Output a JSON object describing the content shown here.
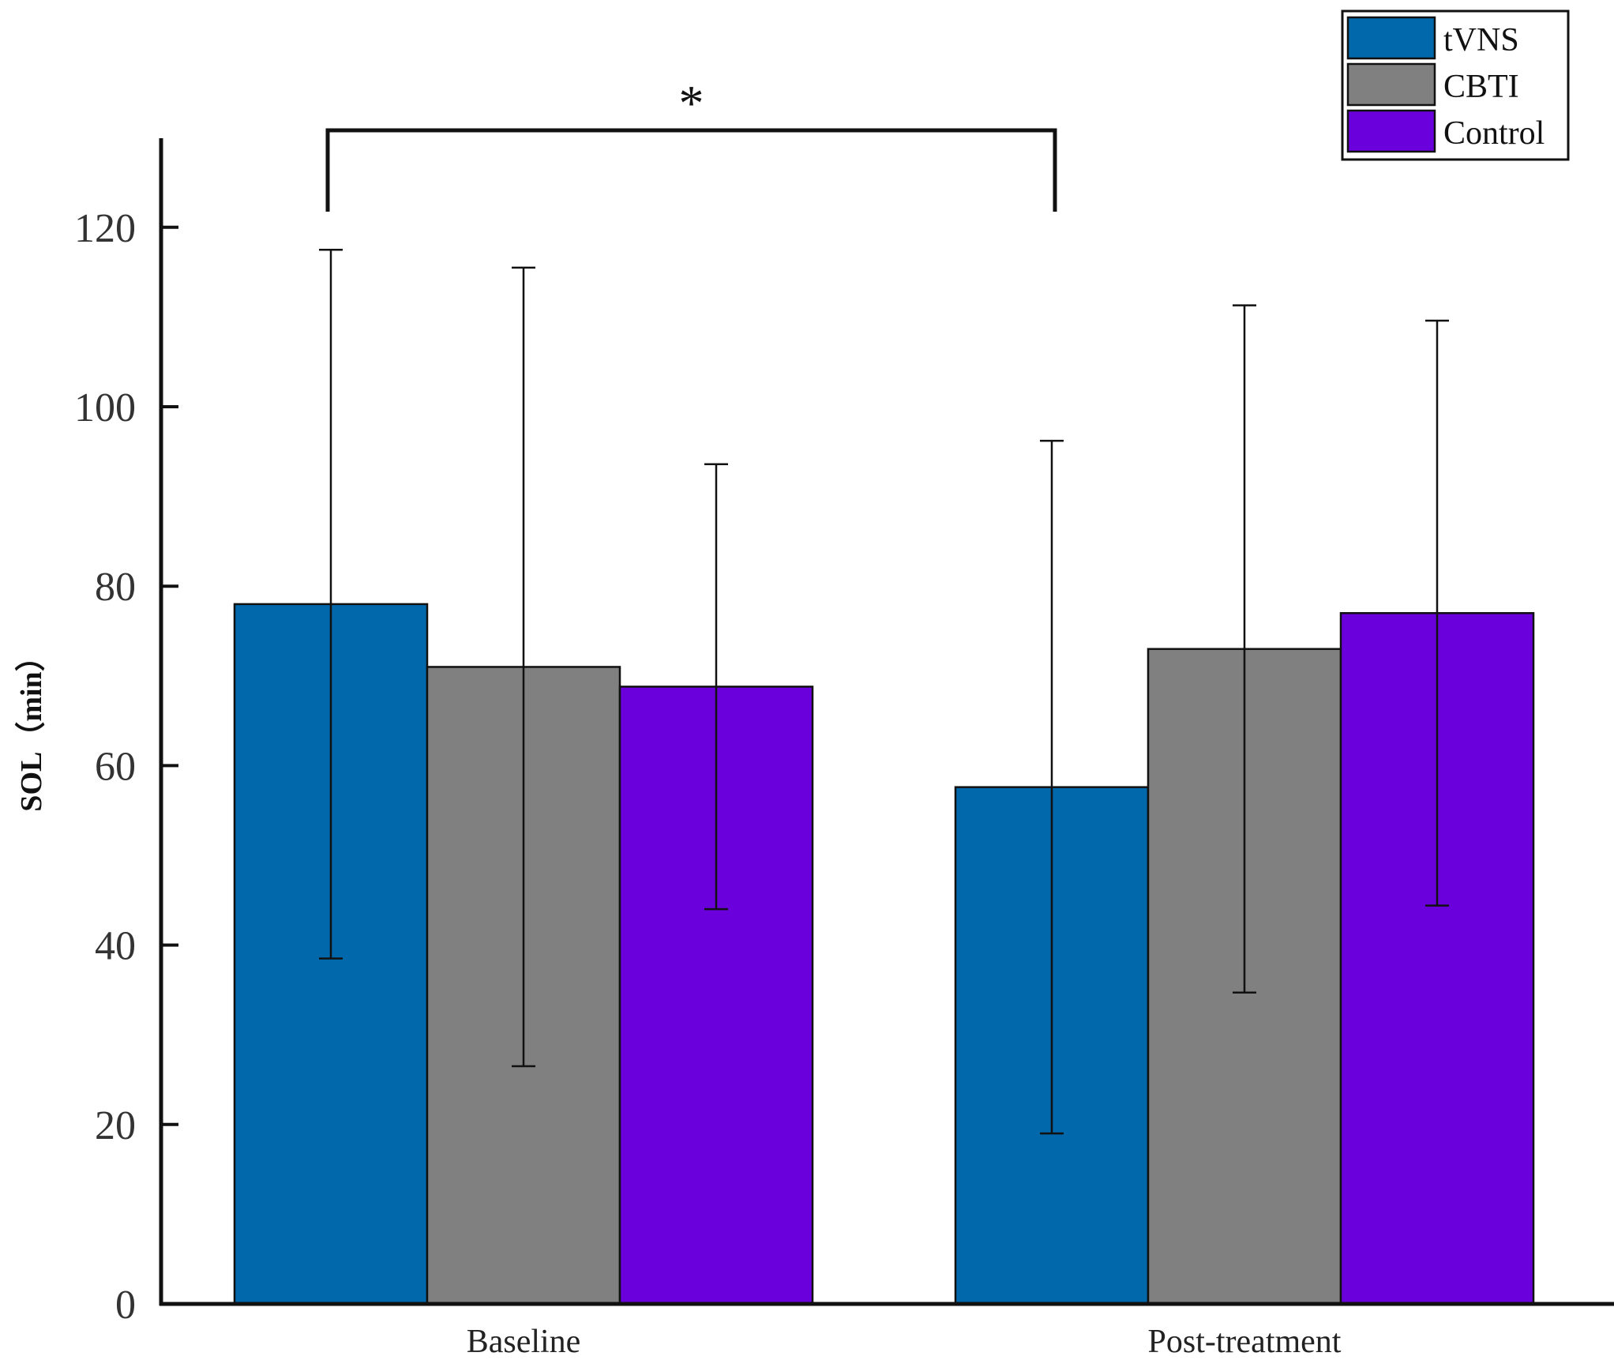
{
  "chart_data": {
    "type": "bar",
    "title": "",
    "xlabel": "",
    "ylabel": "SOL（min）",
    "ylim": [
      0,
      130
    ],
    "yticks": [
      0,
      20,
      40,
      60,
      80,
      100,
      120
    ],
    "categories": [
      "Baseline",
      "Post-treatment"
    ],
    "series": [
      {
        "name": "tVNS",
        "color": "#0068ab",
        "values": [
          78,
          57.6
        ],
        "errors": [
          39.5,
          38.6
        ]
      },
      {
        "name": "CBTI",
        "color": "#808080",
        "values": [
          71,
          73
        ],
        "errors": [
          44.5,
          38.3
        ]
      },
      {
        "name": "Control",
        "color": "#6a00dc",
        "values": [
          68.8,
          77
        ],
        "errors": [
          24.8,
          32.6
        ]
      }
    ],
    "legend_position": "top-right",
    "significance": {
      "label": "*",
      "between": [
        "Baseline",
        "Post-treatment"
      ],
      "series": "tVNS"
    }
  }
}
